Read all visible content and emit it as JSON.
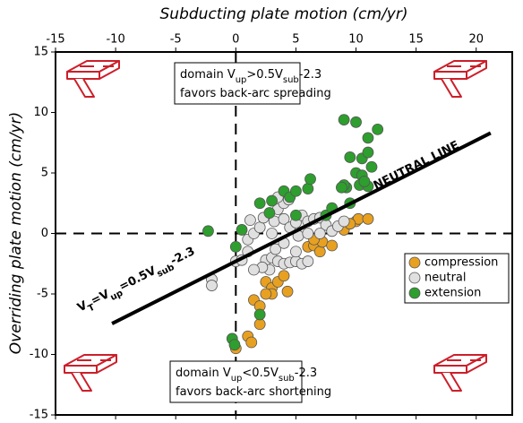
{
  "chart_data": {
    "type": "scatter",
    "xlabel": "Subducting plate motion (cm/yr)",
    "ylabel": "Overriding plate motion (cm/yr)",
    "xlim": [
      -15,
      23
    ],
    "ylim": [
      -15,
      15
    ],
    "xticks": [
      -15,
      -10,
      -5,
      0,
      5,
      10,
      15,
      20
    ],
    "yticks": [
      -15,
      -10,
      -5,
      0,
      5,
      10,
      15
    ],
    "zero_lines": true,
    "legend": "center right",
    "series": [
      {
        "name": "compression",
        "color": "#e8a020",
        "x": [
          0,
          1,
          1.3,
          2,
          1.5,
          2,
          2.5,
          3,
          3.5,
          3,
          4,
          4.3,
          2.5,
          6,
          6.5,
          7,
          7.2,
          8,
          9,
          10,
          10.2,
          11,
          9.5,
          6.5
        ],
        "values": [
          -9.5,
          -8.5,
          -9,
          -7.5,
          -5.5,
          -6,
          -4,
          -4.5,
          -4,
          -5,
          -3.5,
          -4.8,
          -5,
          -1.1,
          -1,
          -1.5,
          -0.7,
          -1,
          0.3,
          1,
          1.2,
          1.2,
          0.8,
          -0.5
        ]
      },
      {
        "name": "neutral",
        "color": "#e0e0e0",
        "x": [
          -2,
          -2,
          0,
          0.5,
          1,
          1,
          1.5,
          1.2,
          2,
          2.3,
          2.5,
          3,
          3.5,
          4,
          4.5,
          5,
          5.5,
          6,
          3,
          3.2,
          3.5,
          4,
          4,
          4.5,
          5,
          5.5,
          6,
          6.5,
          7,
          7.5,
          5.2,
          6,
          7,
          8,
          8.5,
          9,
          2.8,
          3.3,
          4,
          2.2,
          5,
          3.5,
          4.4,
          1.5
        ],
        "values": [
          -3.8,
          -4.3,
          -2.3,
          -2.2,
          -1.5,
          -0.5,
          0,
          1.1,
          0.5,
          1.3,
          -2.2,
          -2,
          -2.3,
          -2.5,
          -2.4,
          -2.3,
          -2.5,
          -2.3,
          0,
          1,
          2,
          2.5,
          1.2,
          0.5,
          0.9,
          1.5,
          1,
          1.2,
          1.3,
          0.7,
          -0.2,
          0,
          0,
          0.2,
          0.6,
          1,
          -3,
          -1.3,
          -0.8,
          -2.8,
          -1.5,
          3,
          2.8,
          -3
        ]
      },
      {
        "name": "extension",
        "color": "#2e9e2e",
        "x": [
          -2.3,
          -0.3,
          -0.1,
          0,
          0.5,
          2,
          2,
          2.8,
          3,
          4,
          4.5,
          5,
          6,
          6.2,
          5,
          7.5,
          8,
          9,
          9.5,
          9.2,
          10,
          10,
          10.5,
          10.5,
          11,
          11,
          11.3,
          11.8,
          10.3,
          9.5,
          11,
          10.7,
          9,
          8.8
        ],
        "values": [
          0.2,
          -8.7,
          -9.2,
          -1.1,
          0.3,
          -6.7,
          2.5,
          1.7,
          2.7,
          3.5,
          3,
          3.5,
          3.7,
          4.5,
          1.5,
          1.5,
          2.1,
          9.4,
          6.3,
          3.8,
          9.2,
          5,
          6.2,
          4.8,
          7.9,
          6.7,
          5.5,
          8.6,
          4,
          2.5,
          3.9,
          4.3,
          4,
          3.8
        ]
      }
    ],
    "reference_line": {
      "label": "NEUTRAL LINE",
      "x": [
        -10.3,
        21.2
      ],
      "values": [
        -7.45,
        8.3
      ],
      "equation": [
        {
          "text": "V"
        },
        {
          "text": "T",
          "sub": true
        },
        {
          "text": "=V"
        },
        {
          "text": "up",
          "sub": true
        },
        {
          "text": "=0.5V"
        },
        {
          "text": "sub",
          "sub": true
        },
        {
          "text": "-2.3"
        }
      ]
    },
    "annotations": [
      {
        "lines": [
          [
            {
              "text": "domain V"
            },
            {
              "text": "up",
              "sub": true
            },
            {
              "text": ">0.5V"
            },
            {
              "text": "sub",
              "sub": true
            },
            {
              "text": "-2.3"
            }
          ],
          [
            {
              "text": "favors back-arc spreading"
            }
          ]
        ]
      },
      {
        "lines": [
          [
            {
              "text": "domain V"
            },
            {
              "text": "up",
              "sub": true
            },
            {
              "text": "<0.5V"
            },
            {
              "text": "sub",
              "sub": true
            },
            {
              "text": "-2.3"
            }
          ],
          [
            {
              "text": "favors back-arc shortening"
            }
          ]
        ]
      }
    ]
  }
}
